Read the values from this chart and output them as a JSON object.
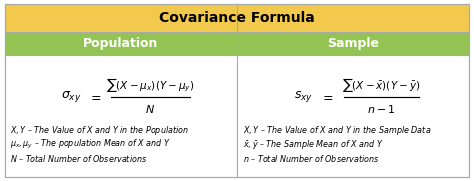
{
  "title": "Covariance Formula",
  "title_bg": "#F2C94C",
  "header_bg": "#92C353",
  "header_text_color": "#FFFFFF",
  "cell_bg": "#FFFFFF",
  "outer_bg": "#FFFFFF",
  "border_color": "#AAAAAA",
  "title_fontsize": 10,
  "header_fontsize": 9,
  "col_headers": [
    "Population",
    "Sample"
  ],
  "pop_notes": [
    "$X, Y$ – The Value of X and Y in the Population",
    "$\\mu_x, \\mu_y$ – The population Mean of X and Y",
    "$N$ – Total Number of Observations"
  ],
  "samp_notes": [
    "$X, Y$ – The Value of X and Y in the Sample Data",
    "$\\bar{x}, \\bar{y}$ – The Sample Mean of X and Y",
    "$n$ – Total Number of Observations"
  ],
  "figsize": [
    4.74,
    1.81
  ],
  "dpi": 100
}
